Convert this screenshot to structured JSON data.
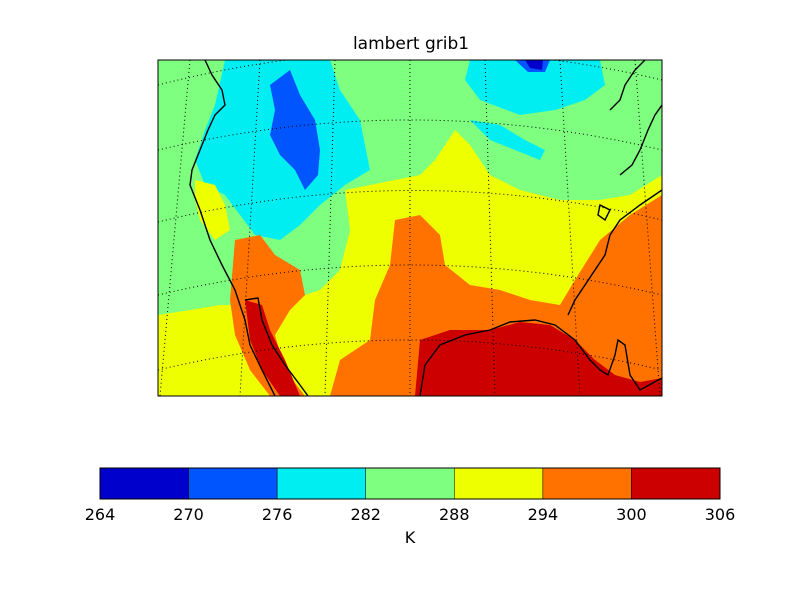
{
  "title": "lambert grib1",
  "colorbar": {
    "unit": "K",
    "ticks": [
      "264",
      "270",
      "276",
      "282",
      "288",
      "294",
      "300",
      "306"
    ],
    "levels": [
      264,
      270,
      276,
      282,
      288,
      294,
      300,
      306
    ],
    "colors": [
      "#0000cd",
      "#0055ff",
      "#00eef2",
      "#7fff7f",
      "#eeff00",
      "#ff7200",
      "#cd0000"
    ]
  },
  "map": {
    "projection": "lambert conformal",
    "variable": "temperature",
    "coastline_color": "#000000",
    "graticule": "dotted"
  }
}
